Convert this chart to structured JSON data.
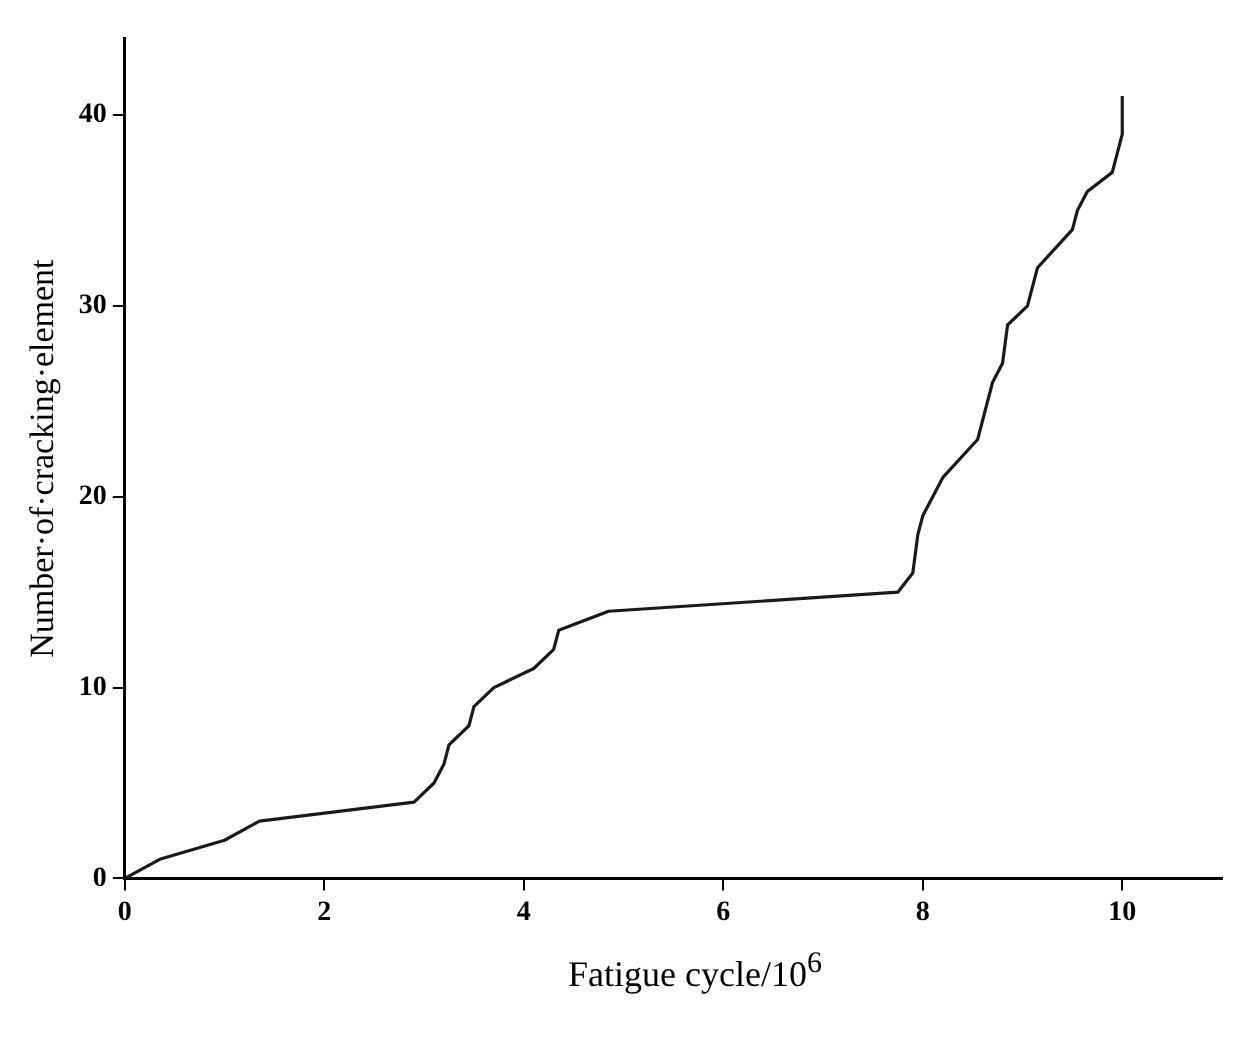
{
  "chart_data": {
    "type": "line",
    "xlabel": "Fatigue cycle/10$^{6}$",
    "ylabel": "Number·of·cracking·element",
    "series": [
      {
        "color": "#1a1a1a",
        "x": [
          0,
          0.35,
          1,
          1.35,
          2.9,
          3.1,
          3.2,
          3.25,
          3.45,
          3.5,
          3.7,
          4.1,
          4.3,
          4.35,
          4.85,
          7.75,
          7.9,
          7.95,
          8,
          8.2,
          8.55,
          8.6,
          8.7,
          8.8,
          8.85,
          9.05,
          9.15,
          9.5,
          9.55,
          9.65,
          9.9,
          10,
          10
        ],
        "values": [
          0,
          1,
          2,
          3,
          4,
          5,
          6,
          7,
          8,
          9,
          10,
          11,
          12,
          13,
          14,
          15,
          16,
          18,
          19,
          21,
          23,
          24,
          26,
          27,
          29,
          30,
          32,
          34,
          35,
          36,
          37,
          39,
          41
        ]
      }
    ],
    "xlim": [
      0,
      11
    ],
    "xticks": [
      0,
      2,
      4,
      6,
      8,
      10
    ],
    "ylim": [
      0,
      44
    ],
    "yticks": [
      0,
      10,
      20,
      30,
      40
    ],
    "grid": false,
    "legend": false,
    "marker": "none",
    "line_style": "solid"
  }
}
